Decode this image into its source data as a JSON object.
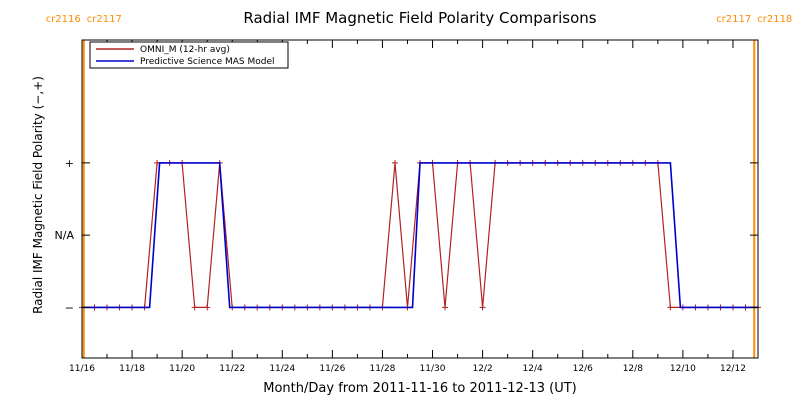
{
  "chart_data": {
    "type": "line",
    "title": "Radial IMF Magnetic Field Polarity Comparisons",
    "xlabel": "Month/Day from 2011-11-16 to 2011-12-13 (UT)",
    "ylabel": "Radial IMF Magnetic Field Polarity (−,+)",
    "x_unit": "days since 2011-11-16 00:00 UT",
    "xlim": [
      0,
      27
    ],
    "ylim": [
      -1.7,
      2.7
    ],
    "x_ticks": [
      {
        "x": 0,
        "label": "11/16"
      },
      {
        "x": 2,
        "label": "11/18"
      },
      {
        "x": 4,
        "label": "11/20"
      },
      {
        "x": 6,
        "label": "11/22"
      },
      {
        "x": 8,
        "label": "11/24"
      },
      {
        "x": 10,
        "label": "11/26"
      },
      {
        "x": 12,
        "label": "11/28"
      },
      {
        "x": 14,
        "label": "11/30"
      },
      {
        "x": 16,
        "label": "12/2"
      },
      {
        "x": 18,
        "label": "12/4"
      },
      {
        "x": 20,
        "label": "12/6"
      },
      {
        "x": 22,
        "label": "12/8"
      },
      {
        "x": 24,
        "label": "12/10"
      },
      {
        "x": 26,
        "label": "12/12"
      }
    ],
    "y_ticks": [
      {
        "y": 1,
        "label": "+"
      },
      {
        "y": 0,
        "label": "N/A"
      },
      {
        "y": -1,
        "label": "−"
      }
    ],
    "rotation_markers": [
      {
        "x": 0.07,
        "labels": [
          "cr2116",
          "cr2117"
        ],
        "color": "#ff8c00"
      },
      {
        "x": 26.85,
        "labels": [
          "cr2117",
          "cr2118"
        ],
        "color": "#ff8c00"
      }
    ],
    "series": [
      {
        "name": "OMNI_M (12-hr avg)",
        "color": "#b22222",
        "marker": "+",
        "x": [
          0,
          0.5,
          1,
          1.5,
          2,
          2.5,
          3,
          3.5,
          4,
          4.5,
          5,
          5.5,
          6,
          6.5,
          7,
          7.5,
          8,
          8.5,
          9,
          9.5,
          10,
          10.5,
          11,
          11.5,
          12,
          12.5,
          13,
          13.5,
          14,
          14.5,
          15,
          15.5,
          16,
          16.5,
          17,
          17.5,
          18,
          18.5,
          19,
          19.5,
          20,
          20.5,
          21,
          21.5,
          22,
          22.5,
          23,
          23.5,
          24,
          24.5,
          25,
          25.5,
          26,
          26.5,
          27
        ],
        "y": [
          -1,
          -1,
          -1,
          -1,
          -1,
          -1,
          1,
          1,
          1,
          -1,
          -1,
          1,
          -1,
          -1,
          -1,
          -1,
          -1,
          -1,
          -1,
          -1,
          -1,
          -1,
          -1,
          -1,
          -1,
          1,
          -1,
          1,
          1,
          -1,
          1,
          1,
          -1,
          1,
          1,
          1,
          1,
          1,
          1,
          1,
          1,
          1,
          1,
          1,
          1,
          1,
          1,
          -1,
          -1,
          -1,
          -1,
          -1,
          -1,
          -1,
          -1
        ]
      },
      {
        "name": "Predictive Science MAS Model",
        "color": "#0000cd",
        "marker": "none",
        "x": [
          0,
          2.7,
          3.1,
          5.5,
          5.9,
          13.2,
          13.5,
          23.5,
          23.9,
          27
        ],
        "y": [
          -1,
          -1,
          1,
          1,
          -1,
          -1,
          1,
          1,
          -1,
          -1
        ]
      }
    ],
    "legend_position": "top-left",
    "grid": false
  }
}
